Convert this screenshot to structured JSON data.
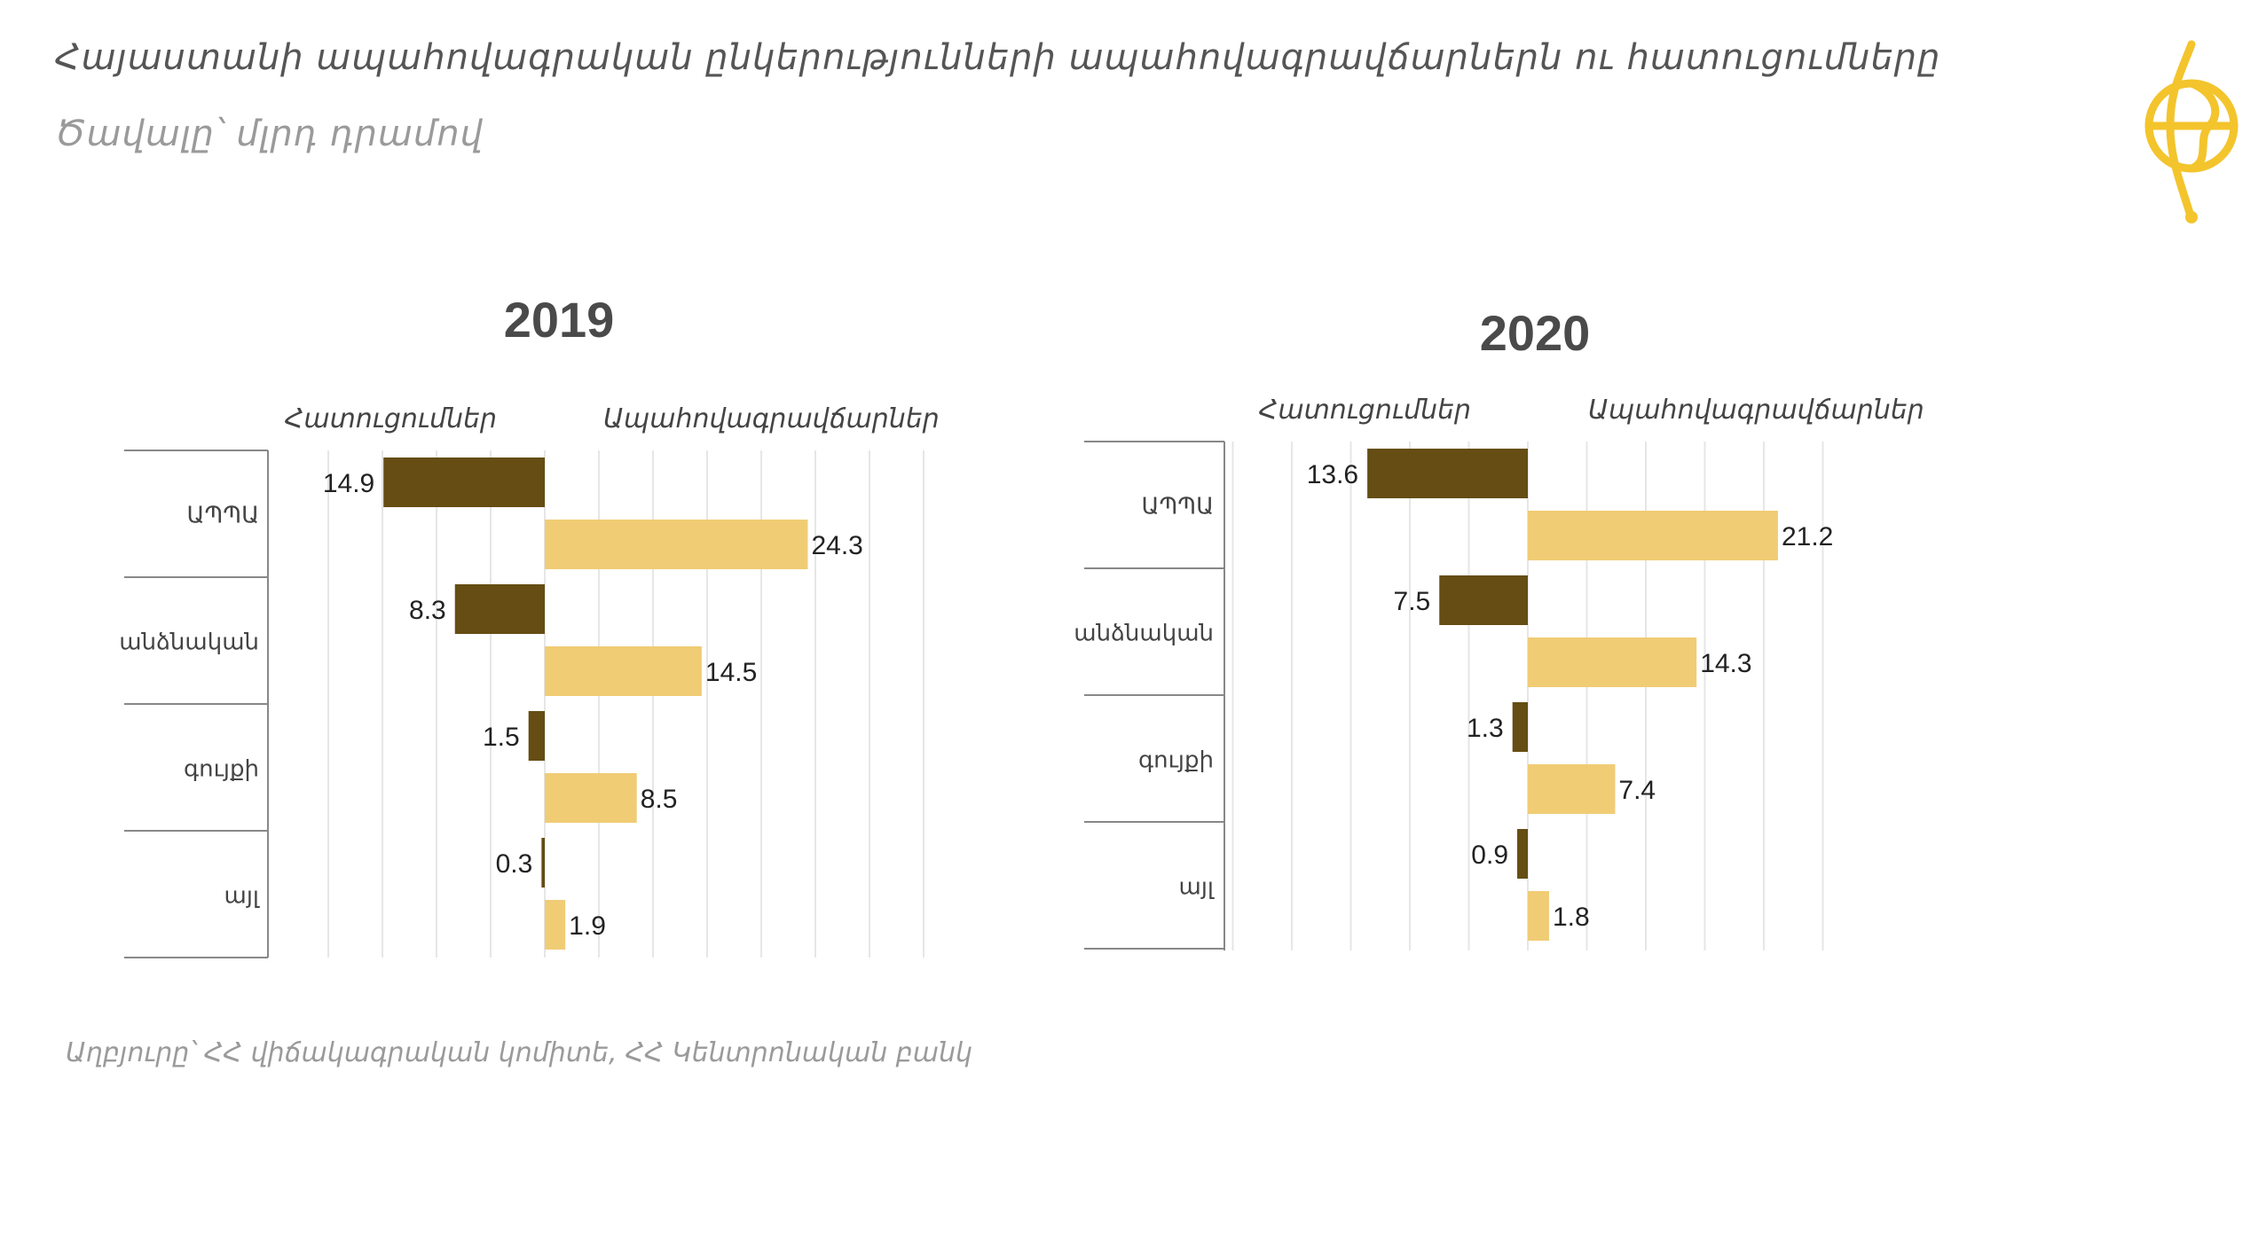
{
  "title": "Հայաստանի ապահովագրական ընկերությունների  ապահովագրավճարներն ու հատուցումները",
  "subtitle": "Ծավալը՝ մլրդ դրամով",
  "source": "Աղբյուրը՝ ՀՀ վիճակագրական կոմիտե, ՀՀ Կենտրոնական բանկ",
  "colors": {
    "payouts": "#654d13",
    "premiums": "#f0cc75",
    "grid": "#e6e6e6",
    "axis": "#888888",
    "logo": "#f3c42c"
  },
  "logo_icon": "logo-icon",
  "chart_data": [
    {
      "type": "bar",
      "title": "2019",
      "categories": [
        "ԱՊՊԱ",
        "անձնական",
        "գույքի",
        "այլ"
      ],
      "series": [
        {
          "name": "Հատուցումներ",
          "values": [
            14.9,
            8.3,
            1.5,
            0.3
          ]
        },
        {
          "name": "Ապահովագրավճարներ",
          "values": [
            24.3,
            14.5,
            8.5,
            1.9
          ]
        }
      ],
      "xlim": [
        -25,
        30
      ],
      "grid": true
    },
    {
      "type": "bar",
      "title": "2020",
      "categories": [
        "ԱՊՊԱ",
        "անձնական",
        "գույքի",
        "այլ"
      ],
      "series": [
        {
          "name": "Հատուցումներ",
          "values": [
            13.6,
            7.5,
            1.3,
            0.9
          ]
        },
        {
          "name": "Ապահովագրավճարներ",
          "values": [
            21.2,
            14.3,
            7.4,
            1.8
          ]
        }
      ],
      "xlim": [
        -25,
        25
      ],
      "grid": true
    }
  ]
}
